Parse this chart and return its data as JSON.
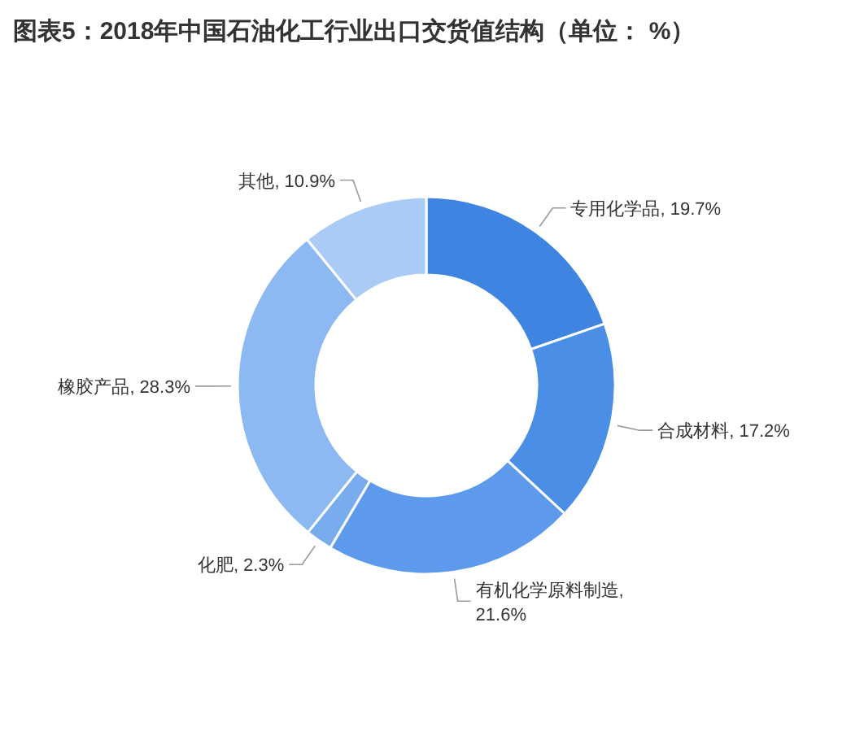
{
  "chart_data": {
    "type": "donut",
    "title": "图表5：2018年中国石油化工行业出口交货值结构（单位： %）",
    "categories": [
      "专用化学品",
      "合成材料",
      "有机化学原料制造",
      "化肥",
      "橡胶产品",
      "其他"
    ],
    "values": [
      19.7,
      17.2,
      21.6,
      2.3,
      28.3,
      10.9
    ],
    "colors": [
      "#3f84e0",
      "#4b8ee6",
      "#5e9aeb",
      "#79acef",
      "#8db9f2",
      "#abcbf7"
    ],
    "value_labels": [
      ", 19.7%",
      ", 17.2%",
      ", 21.6%",
      ", 2.3%",
      ", 28.3%",
      ", 10.9%"
    ]
  }
}
